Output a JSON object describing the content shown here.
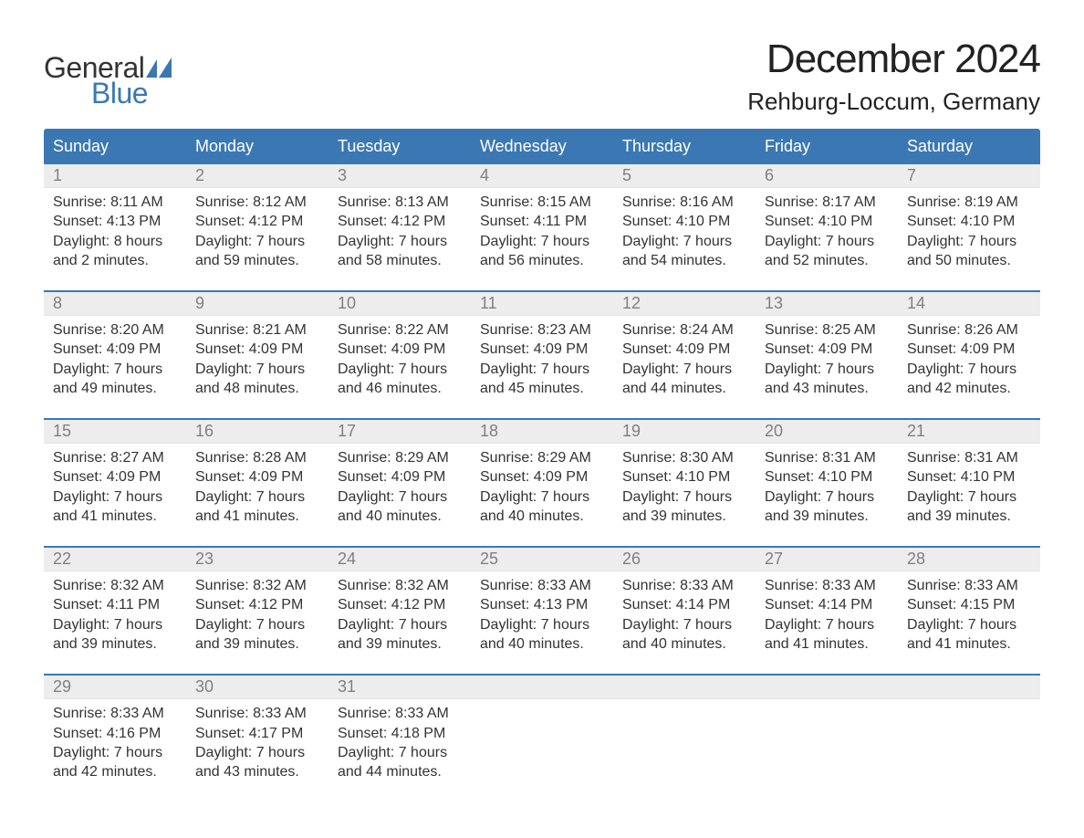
{
  "logo": {
    "line1": "General",
    "line2": "Blue",
    "sail_color": "#3b78b3"
  },
  "title": "December 2024",
  "location": "Rehburg-Loccum, Germany",
  "colors": {
    "header_bg": "#3b78b3",
    "header_text": "#ffffff",
    "daynum_bg": "#ededed",
    "daynum_text": "#808080",
    "body_text": "#333333",
    "week_divider": "#3b78b3",
    "page_bg": "#ffffff"
  },
  "weekdays": [
    "Sunday",
    "Monday",
    "Tuesday",
    "Wednesday",
    "Thursday",
    "Friday",
    "Saturday"
  ],
  "weeks": [
    [
      {
        "num": "1",
        "sunrise": "Sunrise: 8:11 AM",
        "sunset": "Sunset: 4:13 PM",
        "day1": "Daylight: 8 hours",
        "day2": "and 2 minutes."
      },
      {
        "num": "2",
        "sunrise": "Sunrise: 8:12 AM",
        "sunset": "Sunset: 4:12 PM",
        "day1": "Daylight: 7 hours",
        "day2": "and 59 minutes."
      },
      {
        "num": "3",
        "sunrise": "Sunrise: 8:13 AM",
        "sunset": "Sunset: 4:12 PM",
        "day1": "Daylight: 7 hours",
        "day2": "and 58 minutes."
      },
      {
        "num": "4",
        "sunrise": "Sunrise: 8:15 AM",
        "sunset": "Sunset: 4:11 PM",
        "day1": "Daylight: 7 hours",
        "day2": "and 56 minutes."
      },
      {
        "num": "5",
        "sunrise": "Sunrise: 8:16 AM",
        "sunset": "Sunset: 4:10 PM",
        "day1": "Daylight: 7 hours",
        "day2": "and 54 minutes."
      },
      {
        "num": "6",
        "sunrise": "Sunrise: 8:17 AM",
        "sunset": "Sunset: 4:10 PM",
        "day1": "Daylight: 7 hours",
        "day2": "and 52 minutes."
      },
      {
        "num": "7",
        "sunrise": "Sunrise: 8:19 AM",
        "sunset": "Sunset: 4:10 PM",
        "day1": "Daylight: 7 hours",
        "day2": "and 50 minutes."
      }
    ],
    [
      {
        "num": "8",
        "sunrise": "Sunrise: 8:20 AM",
        "sunset": "Sunset: 4:09 PM",
        "day1": "Daylight: 7 hours",
        "day2": "and 49 minutes."
      },
      {
        "num": "9",
        "sunrise": "Sunrise: 8:21 AM",
        "sunset": "Sunset: 4:09 PM",
        "day1": "Daylight: 7 hours",
        "day2": "and 48 minutes."
      },
      {
        "num": "10",
        "sunrise": "Sunrise: 8:22 AM",
        "sunset": "Sunset: 4:09 PM",
        "day1": "Daylight: 7 hours",
        "day2": "and 46 minutes."
      },
      {
        "num": "11",
        "sunrise": "Sunrise: 8:23 AM",
        "sunset": "Sunset: 4:09 PM",
        "day1": "Daylight: 7 hours",
        "day2": "and 45 minutes."
      },
      {
        "num": "12",
        "sunrise": "Sunrise: 8:24 AM",
        "sunset": "Sunset: 4:09 PM",
        "day1": "Daylight: 7 hours",
        "day2": "and 44 minutes."
      },
      {
        "num": "13",
        "sunrise": "Sunrise: 8:25 AM",
        "sunset": "Sunset: 4:09 PM",
        "day1": "Daylight: 7 hours",
        "day2": "and 43 minutes."
      },
      {
        "num": "14",
        "sunrise": "Sunrise: 8:26 AM",
        "sunset": "Sunset: 4:09 PM",
        "day1": "Daylight: 7 hours",
        "day2": "and 42 minutes."
      }
    ],
    [
      {
        "num": "15",
        "sunrise": "Sunrise: 8:27 AM",
        "sunset": "Sunset: 4:09 PM",
        "day1": "Daylight: 7 hours",
        "day2": "and 41 minutes."
      },
      {
        "num": "16",
        "sunrise": "Sunrise: 8:28 AM",
        "sunset": "Sunset: 4:09 PM",
        "day1": "Daylight: 7 hours",
        "day2": "and 41 minutes."
      },
      {
        "num": "17",
        "sunrise": "Sunrise: 8:29 AM",
        "sunset": "Sunset: 4:09 PM",
        "day1": "Daylight: 7 hours",
        "day2": "and 40 minutes."
      },
      {
        "num": "18",
        "sunrise": "Sunrise: 8:29 AM",
        "sunset": "Sunset: 4:09 PM",
        "day1": "Daylight: 7 hours",
        "day2": "and 40 minutes."
      },
      {
        "num": "19",
        "sunrise": "Sunrise: 8:30 AM",
        "sunset": "Sunset: 4:10 PM",
        "day1": "Daylight: 7 hours",
        "day2": "and 39 minutes."
      },
      {
        "num": "20",
        "sunrise": "Sunrise: 8:31 AM",
        "sunset": "Sunset: 4:10 PM",
        "day1": "Daylight: 7 hours",
        "day2": "and 39 minutes."
      },
      {
        "num": "21",
        "sunrise": "Sunrise: 8:31 AM",
        "sunset": "Sunset: 4:10 PM",
        "day1": "Daylight: 7 hours",
        "day2": "and 39 minutes."
      }
    ],
    [
      {
        "num": "22",
        "sunrise": "Sunrise: 8:32 AM",
        "sunset": "Sunset: 4:11 PM",
        "day1": "Daylight: 7 hours",
        "day2": "and 39 minutes."
      },
      {
        "num": "23",
        "sunrise": "Sunrise: 8:32 AM",
        "sunset": "Sunset: 4:12 PM",
        "day1": "Daylight: 7 hours",
        "day2": "and 39 minutes."
      },
      {
        "num": "24",
        "sunrise": "Sunrise: 8:32 AM",
        "sunset": "Sunset: 4:12 PM",
        "day1": "Daylight: 7 hours",
        "day2": "and 39 minutes."
      },
      {
        "num": "25",
        "sunrise": "Sunrise: 8:33 AM",
        "sunset": "Sunset: 4:13 PM",
        "day1": "Daylight: 7 hours",
        "day2": "and 40 minutes."
      },
      {
        "num": "26",
        "sunrise": "Sunrise: 8:33 AM",
        "sunset": "Sunset: 4:14 PM",
        "day1": "Daylight: 7 hours",
        "day2": "and 40 minutes."
      },
      {
        "num": "27",
        "sunrise": "Sunrise: 8:33 AM",
        "sunset": "Sunset: 4:14 PM",
        "day1": "Daylight: 7 hours",
        "day2": "and 41 minutes."
      },
      {
        "num": "28",
        "sunrise": "Sunrise: 8:33 AM",
        "sunset": "Sunset: 4:15 PM",
        "day1": "Daylight: 7 hours",
        "day2": "and 41 minutes."
      }
    ],
    [
      {
        "num": "29",
        "sunrise": "Sunrise: 8:33 AM",
        "sunset": "Sunset: 4:16 PM",
        "day1": "Daylight: 7 hours",
        "day2": "and 42 minutes."
      },
      {
        "num": "30",
        "sunrise": "Sunrise: 8:33 AM",
        "sunset": "Sunset: 4:17 PM",
        "day1": "Daylight: 7 hours",
        "day2": "and 43 minutes."
      },
      {
        "num": "31",
        "sunrise": "Sunrise: 8:33 AM",
        "sunset": "Sunset: 4:18 PM",
        "day1": "Daylight: 7 hours",
        "day2": "and 44 minutes."
      },
      null,
      null,
      null,
      null
    ]
  ]
}
